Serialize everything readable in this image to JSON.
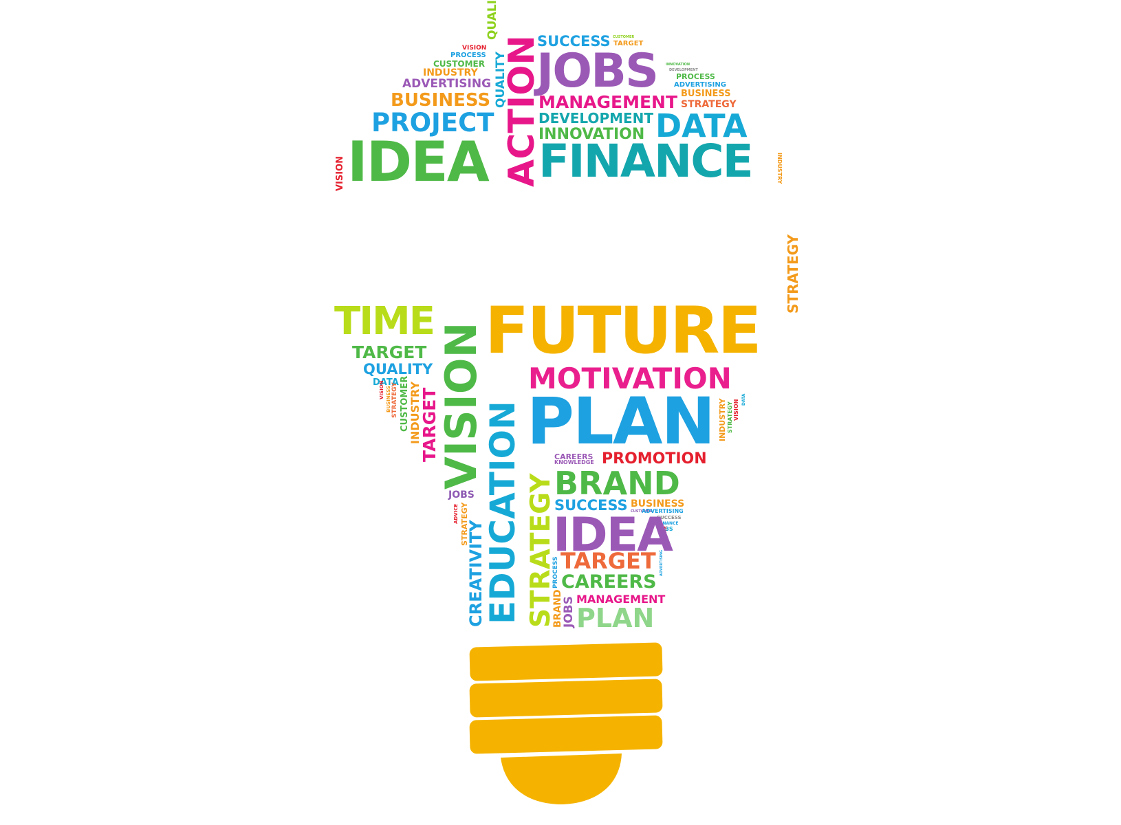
{
  "palette": {
    "red": "#e5202e",
    "magenta": "#e7178a",
    "pink": "#ea1f8e",
    "purple": "#9b59b6",
    "violet": "#8e5bb3",
    "blue": "#1ea1e1",
    "cyan": "#17a9d6",
    "teal": "#14a6ad",
    "green": "#4fb947",
    "lime": "#8ed11e",
    "yellowgreen": "#b9dc1a",
    "orange": "#f39a1b",
    "amber": "#f4ab10",
    "gold": "#f5b300",
    "coral": "#ee6a3b",
    "salmon": "#f08a5d",
    "grey": "#8c8c8c",
    "bulb_base": "#f5b300"
  },
  "words": [
    {
      "text": "SUCCESS",
      "color": "#1ea1e1"
    },
    {
      "text": "CUSTOMER",
      "color": "#8ed11e"
    },
    {
      "text": "TARGET",
      "color": "#f39a1b"
    },
    {
      "text": "VISION",
      "color": "#e5202e"
    },
    {
      "text": "PROCESS",
      "color": "#1ea1e1"
    },
    {
      "text": "CUSTOMER",
      "color": "#4fb947"
    },
    {
      "text": "INDUSTRY",
      "color": "#f39a1b"
    },
    {
      "text": "QUALITY",
      "color": "#8ed11e"
    },
    {
      "text": "ADVERTISING",
      "color": "#9b59b6"
    },
    {
      "text": "BUSINESS",
      "color": "#f39a1b"
    },
    {
      "text": "QUALITY",
      "color": "#17a9d6"
    },
    {
      "text": "PROJECT",
      "color": "#1ea1e1"
    },
    {
      "text": "ACTION",
      "color": "#e7178a"
    },
    {
      "text": "JOBS",
      "color": "#9b59b6"
    },
    {
      "text": "INNOVATION",
      "color": "#4fb947"
    },
    {
      "text": "DEVELOPMENT",
      "color": "#8c8c8c"
    },
    {
      "text": "PROCESS",
      "color": "#4fb947"
    },
    {
      "text": "ADVERTISING",
      "color": "#1ea1e1"
    },
    {
      "text": "BUSINESS",
      "color": "#f39a1b"
    },
    {
      "text": "MANAGEMENT",
      "color": "#e7178a"
    },
    {
      "text": "STRATEGY",
      "color": "#ee6a3b"
    },
    {
      "text": "DEVELOPMENT",
      "color": "#14a6ad"
    },
    {
      "text": "INNOVATION",
      "color": "#4fb947"
    },
    {
      "text": "DATA",
      "color": "#17a9d6"
    },
    {
      "text": "VISION",
      "color": "#e5202e"
    },
    {
      "text": "IDEA",
      "color": "#4fb947"
    },
    {
      "text": "FINANCE",
      "color": "#14a6ad"
    },
    {
      "text": "INDUSTRY",
      "color": "#f39a1b"
    },
    {
      "text": "STRATEGY",
      "color": "#f39a1b"
    },
    {
      "text": "TIME",
      "color": "#b9dc1a"
    },
    {
      "text": "VISION",
      "color": "#4fb947"
    },
    {
      "text": "FUTURE",
      "color": "#f5b300"
    },
    {
      "text": "TARGET",
      "color": "#4fb947"
    },
    {
      "text": "QUALITY",
      "color": "#1ea1e1"
    },
    {
      "text": "DATA",
      "color": "#17a9d6"
    },
    {
      "text": "VISION",
      "color": "#e5202e"
    },
    {
      "text": "BUSINESS",
      "color": "#f39a1b"
    },
    {
      "text": "STRATEGY",
      "color": "#ee6a3b"
    },
    {
      "text": "CUSTOMER",
      "color": "#4fb947"
    },
    {
      "text": "INDUSTRY",
      "color": "#f39a1b"
    },
    {
      "text": "TARGET",
      "color": "#e7178a"
    },
    {
      "text": "EDUCATION",
      "color": "#17a9d6"
    },
    {
      "text": "MOTIVATION",
      "color": "#ea1f8e"
    },
    {
      "text": "PLAN",
      "color": "#1ea1e1"
    },
    {
      "text": "INDUSTRY",
      "color": "#f39a1b"
    },
    {
      "text": "STRATEGY",
      "color": "#4fb947"
    },
    {
      "text": "VISION",
      "color": "#e5202e"
    },
    {
      "text": "DATA",
      "color": "#17a9d6"
    },
    {
      "text": "CAREERS",
      "color": "#9b59b6"
    },
    {
      "text": "KNOWLEDGE",
      "color": "#9b59b6"
    },
    {
      "text": "PROMOTION",
      "color": "#e5202e"
    },
    {
      "text": "STRATEGY",
      "color": "#b9dc1a"
    },
    {
      "text": "BRAND",
      "color": "#4fb947"
    },
    {
      "text": "JOBS",
      "color": "#8e5bb3"
    },
    {
      "text": "ADVICE",
      "color": "#e5202e"
    },
    {
      "text": "STRATEGY",
      "color": "#f39a1b"
    },
    {
      "text": "SUCCESS",
      "color": "#1ea1e1"
    },
    {
      "text": "BUSINESS",
      "color": "#f39a1b"
    },
    {
      "text": "CUSTOMER",
      "color": "#8e5bb3"
    },
    {
      "text": "ADVERTISING",
      "color": "#1ea1e1"
    },
    {
      "text": "SUCCESS",
      "color": "#8c8c8c"
    },
    {
      "text": "FINANCE",
      "color": "#1ea1e1"
    },
    {
      "text": "JOBS",
      "color": "#17a9d6"
    },
    {
      "text": "ADVICE",
      "color": "#e5202e"
    },
    {
      "text": "IDEA",
      "color": "#9b59b6"
    },
    {
      "text": "CREATIVITY",
      "color": "#1ea1e1"
    },
    {
      "text": "TARGET",
      "color": "#ee6a3b"
    },
    {
      "text": "ADVERTISING",
      "color": "#1ea1e1"
    },
    {
      "text": "PROCESS",
      "color": "#1ea1e1"
    },
    {
      "text": "CAREERS",
      "color": "#4fb947"
    },
    {
      "text": "BRAND",
      "color": "#f39a1b"
    },
    {
      "text": "JOBS",
      "color": "#9b59b6"
    },
    {
      "text": "MANAGEMENT",
      "color": "#e7178a"
    },
    {
      "text": "PLAN",
      "color": "#8fd68a"
    }
  ]
}
